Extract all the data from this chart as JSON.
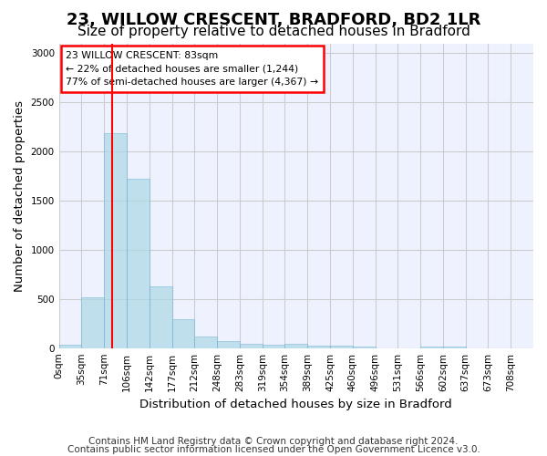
{
  "title": "23, WILLOW CRESCENT, BRADFORD, BD2 1LR",
  "subtitle": "Size of property relative to detached houses in Bradford",
  "xlabel": "Distribution of detached houses by size in Bradford",
  "ylabel": "Number of detached properties",
  "footer_line1": "Contains HM Land Registry data © Crown copyright and database right 2024.",
  "footer_line2": "Contains public sector information licensed under the Open Government Licence v3.0.",
  "bin_labels": [
    "0sqm",
    "35sqm",
    "71sqm",
    "106sqm",
    "142sqm",
    "177sqm",
    "212sqm",
    "248sqm",
    "283sqm",
    "319sqm",
    "354sqm",
    "389sqm",
    "425sqm",
    "460sqm",
    "496sqm",
    "531sqm",
    "566sqm",
    "602sqm",
    "637sqm",
    "673sqm",
    "708sqm"
  ],
  "bar_values": [
    30,
    520,
    2190,
    1720,
    630,
    290,
    120,
    70,
    45,
    35,
    40,
    25,
    25,
    20,
    0,
    0,
    20,
    15,
    0,
    0,
    0
  ],
  "bar_color": "#add8e6",
  "bar_edge_color": "#6baed6",
  "bar_alpha": 0.7,
  "grid_color": "#cccccc",
  "annotation_box_text": "23 WILLOW CRESCENT: 83sqm\n← 22% of detached houses are smaller (1,244)\n77% of semi-detached houses are larger (4,367) →",
  "vline_x": 83,
  "vline_color": "red",
  "ylim": [
    0,
    3100
  ],
  "yticks": [
    0,
    500,
    1000,
    1500,
    2000,
    2500,
    3000
  ],
  "bin_width": 35,
  "background_color": "#eef2ff",
  "title_fontsize": 13,
  "subtitle_fontsize": 11,
  "label_fontsize": 9.5,
  "tick_fontsize": 7.5,
  "footer_fontsize": 7.5
}
